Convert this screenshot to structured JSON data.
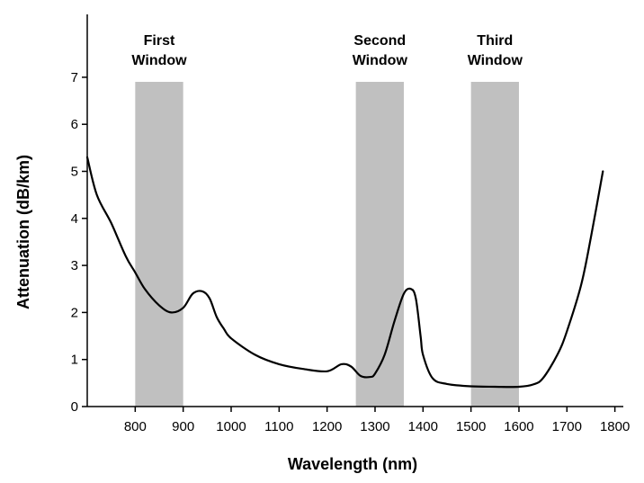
{
  "chart_data": {
    "type": "line",
    "title": "",
    "xlabel": "Wavelength (nm)",
    "ylabel": "Attenuation (dB/km)",
    "xlim": [
      700,
      1800
    ],
    "ylim": [
      0,
      8
    ],
    "x_ticks": [
      800,
      900,
      1000,
      1100,
      1200,
      1300,
      1400,
      1500,
      1600,
      1700,
      1800
    ],
    "y_ticks": [
      0,
      1,
      2,
      3,
      4,
      5,
      6,
      7
    ],
    "grid": false,
    "colors": {
      "curve": "#000000",
      "band": "#c0c0c0"
    },
    "bands": [
      {
        "label_lines": [
          "First",
          "Window"
        ],
        "x_start": 800,
        "x_end": 900
      },
      {
        "label_lines": [
          "Second",
          "Window"
        ],
        "x_start": 1260,
        "x_end": 1360
      },
      {
        "label_lines": [
          "Third",
          "Window"
        ],
        "x_start": 1500,
        "x_end": 1600
      }
    ],
    "series": [
      {
        "x": [
          700,
          720,
          750,
          780,
          800,
          820,
          850,
          875,
          900,
          920,
          940,
          955,
          970,
          985,
          1000,
          1050,
          1100,
          1150,
          1200,
          1230,
          1250,
          1270,
          1290,
          1300,
          1320,
          1340,
          1360,
          1375,
          1385,
          1395,
          1400,
          1420,
          1450,
          1500,
          1550,
          1600,
          1630,
          1650,
          1680,
          1700,
          1730,
          1750,
          1775
        ],
        "y": [
          5.3,
          4.5,
          3.9,
          3.2,
          2.85,
          2.5,
          2.15,
          2.0,
          2.1,
          2.4,
          2.45,
          2.3,
          1.9,
          1.65,
          1.45,
          1.1,
          0.9,
          0.8,
          0.75,
          0.9,
          0.85,
          0.65,
          0.63,
          0.7,
          1.1,
          1.8,
          2.4,
          2.5,
          2.3,
          1.5,
          1.1,
          0.6,
          0.48,
          0.43,
          0.42,
          0.42,
          0.47,
          0.6,
          1.1,
          1.6,
          2.6,
          3.6,
          5.0
        ]
      }
    ]
  }
}
